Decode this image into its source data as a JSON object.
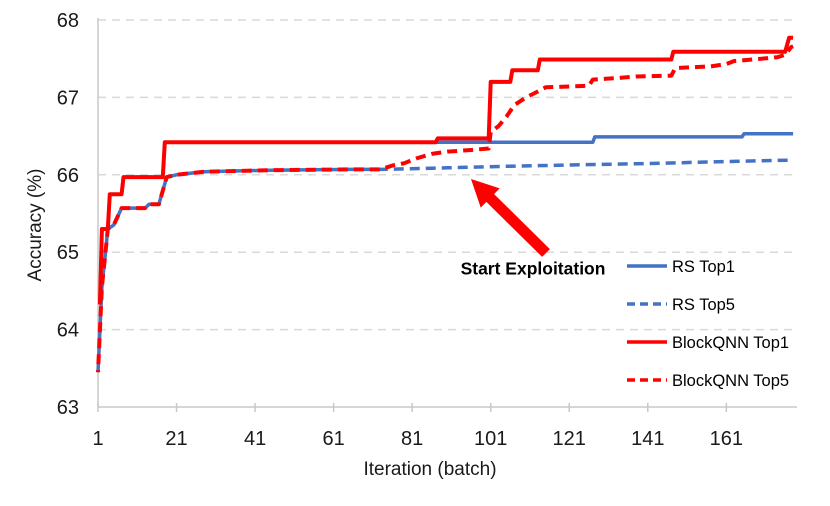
{
  "figure": {
    "xlabel": "Iteration (batch)",
    "ylabel": "Accuracy (%)",
    "annotation": "Start Exploitation"
  },
  "colors": {
    "rs_blue": "#4472C4",
    "blockqnn_red": "#FE0000",
    "grid": "#D9D9D9",
    "axis": "#C8C8C8",
    "text": "#1A1A1A",
    "arrow": "#FE0000"
  },
  "chart_data": {
    "type": "line",
    "title": "",
    "xlabel": "Iteration (batch)",
    "ylabel": "Accuracy (%)",
    "xlim": [
      1,
      179
    ],
    "ylim": [
      63,
      68
    ],
    "xticks": [
      1,
      21,
      41,
      61,
      81,
      101,
      121,
      141,
      161
    ],
    "yticks": [
      63,
      64,
      65,
      66,
      67,
      68
    ],
    "grid": "horizontal-dashed",
    "legend_position": "right-inside",
    "annotations": [
      {
        "text": "Start Exploitation",
        "arrow_points_to_iteration": 96,
        "arrow_points_to_accuracy": 66.25
      }
    ],
    "series": [
      {
        "name": "RS Top1",
        "color": "#4472C4",
        "style": "solid",
        "points": [
          [
            1,
            64.35
          ],
          [
            1.5,
            64.35
          ],
          [
            2,
            65.3
          ],
          [
            3.5,
            65.3
          ],
          [
            4,
            65.75
          ],
          [
            7,
            65.75
          ],
          [
            7.5,
            65.97
          ],
          [
            17.5,
            65.97
          ],
          [
            18,
            66.42
          ],
          [
            127,
            66.42
          ],
          [
            127.5,
            66.49
          ],
          [
            165,
            66.49
          ],
          [
            165.5,
            66.53
          ],
          [
            178,
            66.53
          ]
        ]
      },
      {
        "name": "RS Top5",
        "color": "#4472C4",
        "style": "dashed",
        "points": [
          [
            1,
            63.45
          ],
          [
            2,
            64.55
          ],
          [
            3,
            65.05
          ],
          [
            3.5,
            65.3
          ],
          [
            5,
            65.35
          ],
          [
            7,
            65.57
          ],
          [
            13,
            65.57
          ],
          [
            14,
            65.62
          ],
          [
            16.5,
            65.62
          ],
          [
            18.5,
            65.97
          ],
          [
            21,
            66.0
          ],
          [
            28,
            66.04
          ],
          [
            45,
            66.06
          ],
          [
            65,
            66.07
          ],
          [
            73,
            66.07
          ],
          [
            90,
            66.09
          ],
          [
            105,
            66.11
          ],
          [
            125,
            66.13
          ],
          [
            145,
            66.15
          ],
          [
            160,
            66.17
          ],
          [
            178,
            66.19
          ]
        ]
      },
      {
        "name": "BlockQNN Top1",
        "color": "#FE0000",
        "style": "solid",
        "points": [
          [
            1,
            64.35
          ],
          [
            1.5,
            64.35
          ],
          [
            2,
            65.3
          ],
          [
            3.5,
            65.3
          ],
          [
            4,
            65.75
          ],
          [
            7,
            65.75
          ],
          [
            7.5,
            65.97
          ],
          [
            17.5,
            65.97
          ],
          [
            18,
            66.42
          ],
          [
            87,
            66.42
          ],
          [
            87.5,
            66.47
          ],
          [
            100.5,
            66.47
          ],
          [
            101,
            67.2
          ],
          [
            106,
            67.2
          ],
          [
            106.5,
            67.35
          ],
          [
            113,
            67.35
          ],
          [
            113.5,
            67.49
          ],
          [
            147,
            67.49
          ],
          [
            147.5,
            67.59
          ],
          [
            176,
            67.59
          ],
          [
            177,
            67.77
          ],
          [
            178,
            67.77
          ]
        ]
      },
      {
        "name": "BlockQNN Top5",
        "color": "#FE0000",
        "style": "dashed",
        "points": [
          [
            1,
            63.45
          ],
          [
            2,
            64.55
          ],
          [
            3,
            65.05
          ],
          [
            3.5,
            65.3
          ],
          [
            5,
            65.35
          ],
          [
            7,
            65.57
          ],
          [
            13,
            65.57
          ],
          [
            14,
            65.62
          ],
          [
            16.5,
            65.62
          ],
          [
            18.5,
            65.97
          ],
          [
            21,
            66.0
          ],
          [
            28,
            66.04
          ],
          [
            45,
            66.06
          ],
          [
            65,
            66.07
          ],
          [
            73,
            66.07
          ],
          [
            76,
            66.12
          ],
          [
            79,
            66.15
          ],
          [
            82,
            66.21
          ],
          [
            86,
            66.27
          ],
          [
            90,
            66.3
          ],
          [
            96,
            66.32
          ],
          [
            100.5,
            66.34
          ],
          [
            101,
            66.55
          ],
          [
            103,
            66.63
          ],
          [
            105,
            66.75
          ],
          [
            107,
            66.9
          ],
          [
            110,
            67.0
          ],
          [
            112,
            67.05
          ],
          [
            115,
            67.13
          ],
          [
            126,
            67.15
          ],
          [
            127,
            67.23
          ],
          [
            133,
            67.25
          ],
          [
            138,
            67.27
          ],
          [
            147,
            67.28
          ],
          [
            148,
            67.38
          ],
          [
            157,
            67.4
          ],
          [
            161,
            67.43
          ],
          [
            163,
            67.47
          ],
          [
            170,
            67.5
          ],
          [
            174,
            67.52
          ],
          [
            176,
            67.55
          ],
          [
            177.5,
            67.65
          ],
          [
            178,
            67.66
          ]
        ]
      }
    ]
  }
}
